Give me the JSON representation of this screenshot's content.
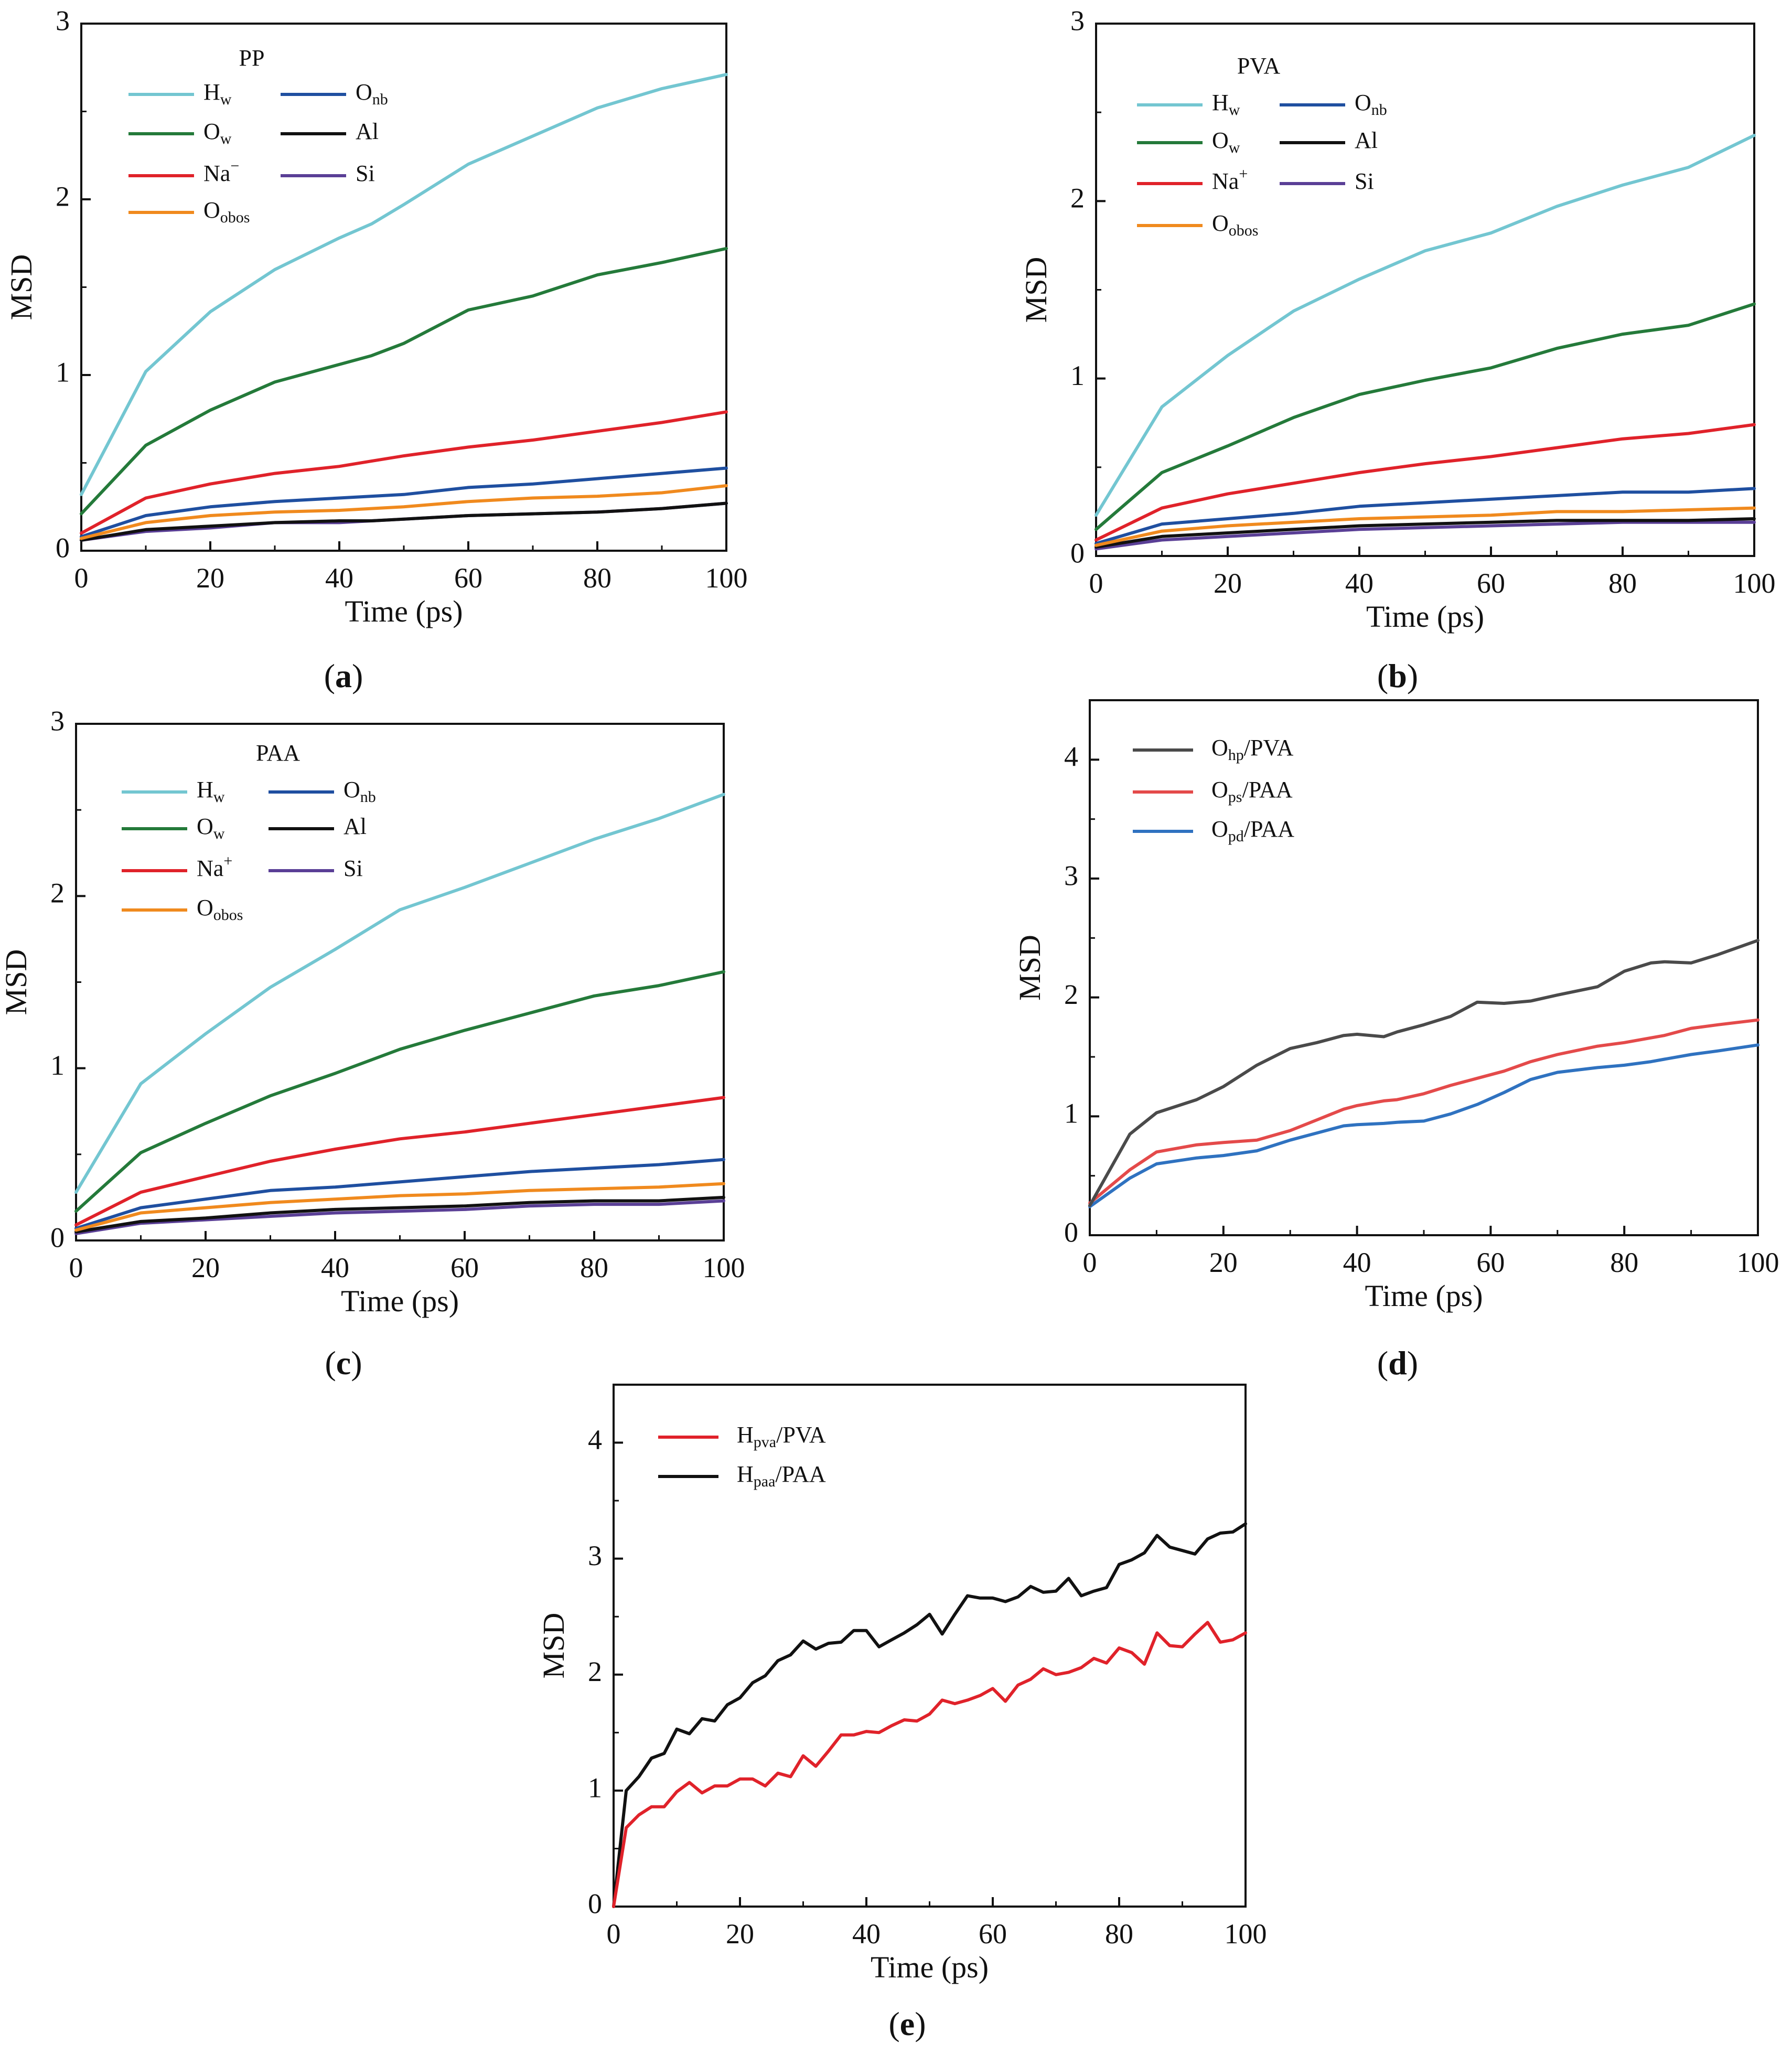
{
  "figure_labels": {
    "a": {
      "open": "(",
      "letter": "a",
      "close": ")"
    },
    "b": {
      "open": "(",
      "letter": "b",
      "close": ")"
    },
    "c": {
      "open": "(",
      "letter": "c",
      "close": ")"
    },
    "d": {
      "open": "(",
      "letter": "d",
      "close": ")"
    },
    "e": {
      "open": "(",
      "letter": "e",
      "close": ")"
    }
  },
  "colors": {
    "Hw": "#73c6d1",
    "Ow": "#247a3a",
    "Na": "#e0222a",
    "Oobos": "#f08a1e",
    "Onb": "#1f4fa0",
    "Al": "#111111",
    "Si": "#5a3f96",
    "Ohp": "#4a4a4a",
    "Ops": "#e44a4a",
    "Opd": "#2f72c0",
    "Hpva": "#e0222a",
    "Hpaa": "#111111",
    "axis": "#111111"
  },
  "chart_data": [
    {
      "id": "a",
      "type": "line",
      "title": "PP",
      "xlabel": "Time (ps)",
      "ylabel": "MSD",
      "xlim": [
        0,
        100
      ],
      "ylim": [
        0,
        3
      ],
      "xticks": [
        "0",
        "20",
        "40",
        "60",
        "80",
        "100"
      ],
      "yticks": [
        "0",
        "1",
        "2",
        "3"
      ],
      "x": [
        0,
        10,
        20,
        30,
        40,
        45,
        50,
        60,
        70,
        80,
        90,
        100
      ],
      "series": [
        {
          "key": "Hw",
          "name": "Hw",
          "main": "H",
          "sub": "w",
          "sup": "",
          "values": [
            0.32,
            1.02,
            1.36,
            1.6,
            1.78,
            1.86,
            1.97,
            2.2,
            2.36,
            2.52,
            2.63,
            2.71
          ]
        },
        {
          "key": "Ow",
          "name": "Ow",
          "main": "O",
          "sub": "w",
          "sup": "",
          "values": [
            0.21,
            0.6,
            0.8,
            0.96,
            1.06,
            1.11,
            1.18,
            1.37,
            1.45,
            1.57,
            1.64,
            1.72
          ]
        },
        {
          "key": "Na",
          "name": "Na−",
          "main": "Na",
          "sub": "",
          "sup": "−",
          "values": [
            0.1,
            0.3,
            0.38,
            0.44,
            0.48,
            0.51,
            0.54,
            0.59,
            0.63,
            0.68,
            0.73,
            0.79
          ]
        },
        {
          "key": "Oobos",
          "name": "Oobos",
          "main": "O",
          "sub": "obos",
          "sup": "",
          "values": [
            0.07,
            0.16,
            0.2,
            0.22,
            0.23,
            0.24,
            0.25,
            0.28,
            0.3,
            0.31,
            0.33,
            0.37
          ]
        },
        {
          "key": "Onb",
          "name": "Onb",
          "main": "O",
          "sub": "nb",
          "sup": "",
          "values": [
            0.08,
            0.2,
            0.25,
            0.28,
            0.3,
            0.31,
            0.32,
            0.36,
            0.38,
            0.41,
            0.44,
            0.47
          ]
        },
        {
          "key": "Al",
          "name": "Al",
          "main": "Al",
          "sub": "",
          "sup": "",
          "values": [
            0.06,
            0.12,
            0.14,
            0.16,
            0.17,
            0.17,
            0.18,
            0.2,
            0.21,
            0.22,
            0.24,
            0.27
          ]
        },
        {
          "key": "Si",
          "name": "Si",
          "main": "Si",
          "sub": "",
          "sup": "",
          "values": [
            0.06,
            0.11,
            0.13,
            0.16,
            0.16,
            0.17,
            0.18,
            0.2,
            0.21,
            0.22,
            0.24,
            0.27
          ]
        }
      ]
    },
    {
      "id": "b",
      "type": "line",
      "title": "PVA",
      "xlabel": "Time (ps)",
      "ylabel": "MSD",
      "xlim": [
        0,
        100
      ],
      "ylim": [
        0,
        3
      ],
      "xticks": [
        "0",
        "20",
        "40",
        "60",
        "80",
        "100"
      ],
      "yticks": [
        "0",
        "1",
        "2",
        "3"
      ],
      "x": [
        0,
        10,
        20,
        30,
        40,
        50,
        60,
        70,
        80,
        90,
        100
      ],
      "series": [
        {
          "key": "Hw",
          "name": "Hw",
          "main": "H",
          "sub": "w",
          "sup": "",
          "values": [
            0.23,
            0.84,
            1.13,
            1.38,
            1.56,
            1.72,
            1.82,
            1.97,
            2.09,
            2.19,
            2.37
          ]
        },
        {
          "key": "Ow",
          "name": "Ow",
          "main": "O",
          "sub": "w",
          "sup": "",
          "values": [
            0.15,
            0.47,
            0.62,
            0.78,
            0.91,
            0.99,
            1.06,
            1.17,
            1.25,
            1.3,
            1.42
          ]
        },
        {
          "key": "Na",
          "name": "Na+",
          "main": "Na",
          "sub": "",
          "sup": "+",
          "values": [
            0.09,
            0.27,
            0.35,
            0.41,
            0.47,
            0.52,
            0.56,
            0.61,
            0.66,
            0.69,
            0.74
          ]
        },
        {
          "key": "Oobos",
          "name": "Oobos",
          "main": "O",
          "sub": "obos",
          "sup": "",
          "values": [
            0.06,
            0.14,
            0.17,
            0.19,
            0.21,
            0.22,
            0.23,
            0.25,
            0.25,
            0.26,
            0.27
          ]
        },
        {
          "key": "Onb",
          "name": "Onb",
          "main": "O",
          "sub": "nb",
          "sup": "",
          "values": [
            0.07,
            0.18,
            0.21,
            0.24,
            0.28,
            0.3,
            0.32,
            0.34,
            0.36,
            0.36,
            0.38
          ]
        },
        {
          "key": "Al",
          "name": "Al",
          "main": "Al",
          "sub": "",
          "sup": "",
          "values": [
            0.05,
            0.11,
            0.13,
            0.15,
            0.17,
            0.18,
            0.19,
            0.2,
            0.2,
            0.2,
            0.21
          ]
        },
        {
          "key": "Si",
          "name": "Si",
          "main": "Si",
          "sub": "",
          "sup": "",
          "values": [
            0.04,
            0.09,
            0.11,
            0.13,
            0.15,
            0.16,
            0.17,
            0.18,
            0.19,
            0.19,
            0.19
          ]
        }
      ]
    },
    {
      "id": "c",
      "type": "line",
      "title": "PAA",
      "xlabel": "Time (ps)",
      "ylabel": "MSD",
      "xlim": [
        0,
        100
      ],
      "ylim": [
        0,
        3
      ],
      "xticks": [
        "0",
        "20",
        "40",
        "60",
        "80",
        "100"
      ],
      "yticks": [
        "0",
        "1",
        "2",
        "3"
      ],
      "x": [
        0,
        10,
        20,
        30,
        40,
        50,
        60,
        70,
        80,
        90,
        100
      ],
      "series": [
        {
          "key": "Hw",
          "name": "Hw",
          "main": "H",
          "sub": "w",
          "sup": "",
          "values": [
            0.28,
            0.91,
            1.2,
            1.47,
            1.69,
            1.92,
            2.05,
            2.19,
            2.33,
            2.45,
            2.59
          ]
        },
        {
          "key": "Ow",
          "name": "Ow",
          "main": "O",
          "sub": "w",
          "sup": "",
          "values": [
            0.17,
            0.51,
            0.68,
            0.84,
            0.97,
            1.11,
            1.22,
            1.32,
            1.42,
            1.48,
            1.56
          ]
        },
        {
          "key": "Na",
          "name": "Na+",
          "main": "Na",
          "sub": "",
          "sup": "+",
          "values": [
            0.09,
            0.28,
            0.37,
            0.46,
            0.53,
            0.59,
            0.63,
            0.68,
            0.73,
            0.78,
            0.83
          ]
        },
        {
          "key": "Oobos",
          "name": "Oobos",
          "main": "O",
          "sub": "obos",
          "sup": "",
          "values": [
            0.06,
            0.16,
            0.19,
            0.22,
            0.24,
            0.26,
            0.27,
            0.29,
            0.3,
            0.31,
            0.33
          ]
        },
        {
          "key": "Onb",
          "name": "Onb",
          "main": "O",
          "sub": "nb",
          "sup": "",
          "values": [
            0.07,
            0.19,
            0.24,
            0.29,
            0.31,
            0.34,
            0.37,
            0.4,
            0.42,
            0.44,
            0.47
          ]
        },
        {
          "key": "Al",
          "name": "Al",
          "main": "Al",
          "sub": "",
          "sup": "",
          "values": [
            0.05,
            0.11,
            0.13,
            0.16,
            0.18,
            0.19,
            0.2,
            0.22,
            0.23,
            0.23,
            0.25
          ]
        },
        {
          "key": "Si",
          "name": "Si",
          "main": "Si",
          "sub": "",
          "sup": "",
          "values": [
            0.04,
            0.1,
            0.12,
            0.14,
            0.16,
            0.17,
            0.18,
            0.2,
            0.21,
            0.21,
            0.23
          ]
        }
      ]
    },
    {
      "id": "d",
      "type": "line",
      "title": "",
      "xlabel": "Time (ps)",
      "ylabel": "MSD",
      "xlim": [
        0,
        100
      ],
      "ylim": [
        0,
        4.5
      ],
      "xticks": [
        "0",
        "20",
        "40",
        "60",
        "80",
        "100"
      ],
      "yticks": [
        "0",
        "1",
        "2",
        "3",
        "4"
      ],
      "x": [
        0,
        6,
        10,
        16,
        20,
        25,
        30,
        34,
        38,
        40,
        44,
        46,
        50,
        54,
        58,
        62,
        66,
        70,
        76,
        80,
        84,
        86,
        90,
        94,
        100
      ],
      "series": [
        {
          "key": "Ohp",
          "name": "Ohp/PVA",
          "main": "O",
          "sub": "hp",
          "sup": "",
          "suffix": "/PVA",
          "values": [
            0.25,
            0.85,
            1.03,
            1.14,
            1.25,
            1.43,
            1.57,
            1.62,
            1.68,
            1.69,
            1.67,
            1.71,
            1.77,
            1.84,
            1.96,
            1.95,
            1.97,
            2.02,
            2.09,
            2.22,
            2.29,
            2.3,
            2.29,
            2.36,
            2.48
          ]
        },
        {
          "key": "Ops",
          "name": "Ops/PAA",
          "main": "O",
          "sub": "ps",
          "sup": "",
          "suffix": "/PAA",
          "values": [
            0.27,
            0.55,
            0.7,
            0.76,
            0.78,
            0.8,
            0.88,
            0.97,
            1.06,
            1.09,
            1.13,
            1.14,
            1.19,
            1.26,
            1.32,
            1.38,
            1.46,
            1.52,
            1.59,
            1.62,
            1.66,
            1.68,
            1.74,
            1.77,
            1.81
          ]
        },
        {
          "key": "Opd",
          "name": "Opd/PAA",
          "main": "O",
          "sub": "pd",
          "sup": "",
          "suffix": "/PAA",
          "values": [
            0.24,
            0.48,
            0.6,
            0.65,
            0.67,
            0.71,
            0.8,
            0.86,
            0.92,
            0.93,
            0.94,
            0.95,
            0.96,
            1.02,
            1.1,
            1.2,
            1.31,
            1.37,
            1.41,
            1.43,
            1.46,
            1.48,
            1.52,
            1.55,
            1.6
          ]
        }
      ]
    },
    {
      "id": "e",
      "type": "line",
      "title": "",
      "xlabel": "Time (ps)",
      "ylabel": "MSD",
      "xlim": [
        0,
        100
      ],
      "ylim": [
        0,
        4.5
      ],
      "xticks": [
        "0",
        "20",
        "40",
        "60",
        "80",
        "100"
      ],
      "yticks": [
        "0",
        "1",
        "2",
        "3",
        "4"
      ],
      "x": [
        0,
        2,
        4,
        6,
        8,
        10,
        12,
        14,
        16,
        18,
        20,
        22,
        24,
        26,
        28,
        30,
        32,
        34,
        36,
        38,
        40,
        42,
        44,
        46,
        48,
        50,
        52,
        54,
        56,
        58,
        60,
        62,
        64,
        66,
        68,
        70,
        72,
        74,
        76,
        78,
        80,
        82,
        84,
        86,
        88,
        90,
        92,
        94,
        96,
        98,
        100
      ],
      "series": [
        {
          "key": "Hpva",
          "name": "Hpva/PVA",
          "main": "H",
          "sub": "pva",
          "sup": "",
          "suffix": "/PVA",
          "values": [
            0.0,
            0.68,
            0.79,
            0.86,
            0.86,
            0.99,
            1.07,
            0.98,
            1.04,
            1.04,
            1.1,
            1.1,
            1.04,
            1.15,
            1.12,
            1.3,
            1.21,
            1.34,
            1.48,
            1.48,
            1.51,
            1.5,
            1.56,
            1.61,
            1.6,
            1.66,
            1.78,
            1.75,
            1.78,
            1.82,
            1.88,
            1.77,
            1.91,
            1.96,
            2.05,
            2.0,
            2.02,
            2.06,
            2.14,
            2.1,
            2.23,
            2.19,
            2.09,
            2.36,
            2.25,
            2.24,
            2.35,
            2.45,
            2.28,
            2.3,
            2.36
          ]
        },
        {
          "key": "Hpaa",
          "name": "Hpaa/PAA",
          "main": "H",
          "sub": "paa",
          "sup": "",
          "suffix": "/PAA",
          "values": [
            0.0,
            1.0,
            1.12,
            1.28,
            1.32,
            1.53,
            1.49,
            1.62,
            1.6,
            1.74,
            1.8,
            1.93,
            1.99,
            2.12,
            2.17,
            2.29,
            2.22,
            2.27,
            2.28,
            2.38,
            2.38,
            2.24,
            2.3,
            2.36,
            2.43,
            2.52,
            2.35,
            2.52,
            2.68,
            2.66,
            2.66,
            2.63,
            2.67,
            2.76,
            2.71,
            2.72,
            2.83,
            2.68,
            2.72,
            2.75,
            2.95,
            2.99,
            3.05,
            3.2,
            3.1,
            3.07,
            3.04,
            3.17,
            3.22,
            3.23,
            3.3
          ]
        }
      ]
    }
  ]
}
